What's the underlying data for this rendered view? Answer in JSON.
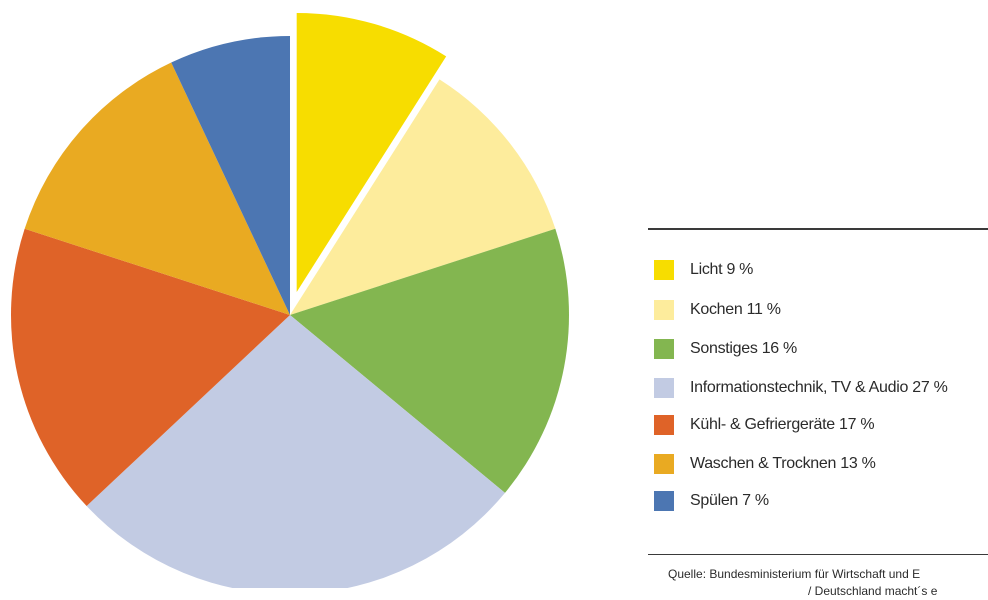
{
  "chart_data": {
    "type": "pie",
    "slices": [
      {
        "label": "Licht 9 %",
        "value": 9,
        "color": "#f7dd00",
        "exploded": true
      },
      {
        "label": "Kochen 11 %",
        "value": 11,
        "color": "#fdec9c"
      },
      {
        "label": "Sonstiges 16 %",
        "value": 16,
        "color": "#83b650"
      },
      {
        "label": "Informationstechnik, TV & Audio 27 %",
        "value": 27,
        "color": "#c2cbe3"
      },
      {
        "label": "Kühl- & Gefriergeräte 17 %",
        "value": 17,
        "color": "#df6328"
      },
      {
        "label": "Waschen & Trocknen 13 %",
        "value": 13,
        "color": "#e9aa22"
      },
      {
        "label": "Spülen 7 %",
        "value": 7,
        "color": "#4c76b2"
      }
    ],
    "legend_position": "right",
    "start_angle": "12 o'clock",
    "direction": "clockwise"
  },
  "source": {
    "line1": "Quelle: Bundesministerium für Wirtschaft und E",
    "line2": "/ Deutschland macht´s e"
  }
}
